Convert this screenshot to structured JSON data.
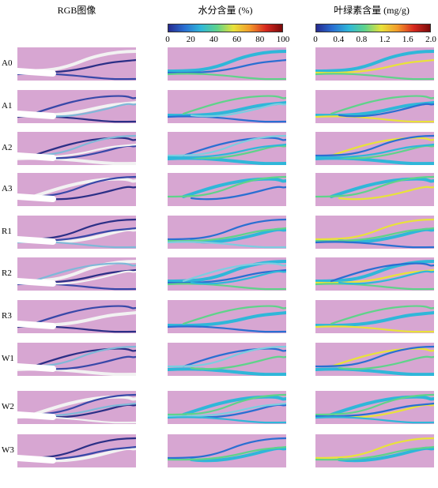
{
  "headers": {
    "rgb": "RGB图像",
    "water": "水分含量 (%)",
    "chl": "叶绿素含量 (mg/g)"
  },
  "water_scale": {
    "ticks": [
      "0",
      "20",
      "40",
      "60",
      "80",
      "100"
    ]
  },
  "chl_scale": {
    "ticks": [
      "0",
      "0.4",
      "0.8",
      "1.2",
      "1.6",
      "2.0"
    ]
  },
  "colors": {
    "panel_background": "#d7a6d2",
    "colormap": [
      "#262a8f",
      "#2a6fd2",
      "#2fb7d9",
      "#5fd38a",
      "#e8e23a",
      "#f29a2a",
      "#d7281f",
      "#7a0a0a"
    ]
  },
  "rows": [
    {
      "label": "A0"
    },
    {
      "label": "A1"
    },
    {
      "label": "A2"
    },
    {
      "label": "A3"
    },
    {
      "label": "R1"
    },
    {
      "label": "R2"
    },
    {
      "label": "R3"
    },
    {
      "label": "W1"
    },
    {
      "label": "W2"
    },
    {
      "label": "W3"
    }
  ]
}
